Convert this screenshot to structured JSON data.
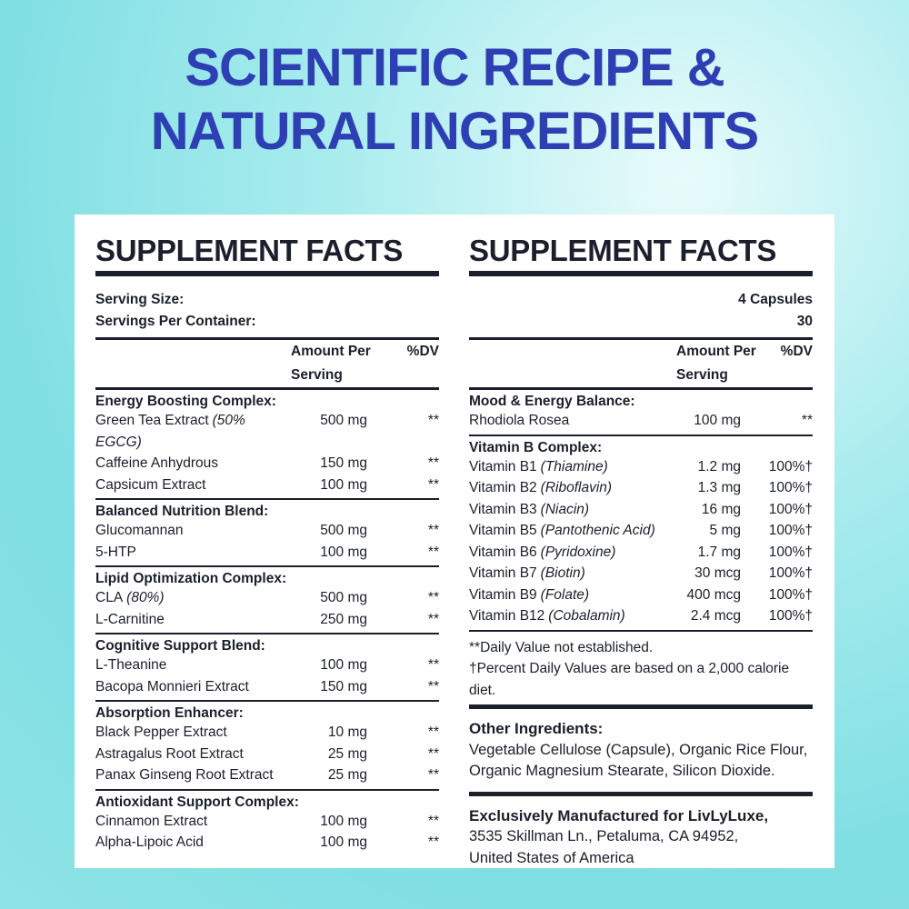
{
  "title": [
    "SCIENTIFIC RECIPE &",
    "NATURAL INGREDIENTS"
  ],
  "left": {
    "heading": "SUPPLEMENT FACTS",
    "serving_size": "Serving Size:",
    "servings": "Servings Per Container:",
    "amount_header": "Amount Per Serving",
    "dv_header": "%DV",
    "groups": [
      {
        "name": "Energy Boosting Complex:",
        "rows": [
          {
            "name": "Green Tea Extract",
            "note": "(50% EGCG)",
            "amount": "500 mg",
            "dv": "**"
          },
          {
            "name": "Caffeine Anhydrous",
            "amount": "150 mg",
            "dv": "**"
          },
          {
            "name": "Capsicum Extract",
            "amount": "100 mg",
            "dv": "**"
          }
        ]
      },
      {
        "name": "Balanced Nutrition Blend:",
        "rows": [
          {
            "name": "Glucomannan",
            "amount": "500 mg",
            "dv": "**"
          },
          {
            "name": "5-HTP",
            "amount": "100 mg",
            "dv": "**"
          }
        ]
      },
      {
        "name": "Lipid Optimization Complex:",
        "rows": [
          {
            "name": "CLA",
            "note": "(80%)",
            "amount": "500 mg",
            "dv": "**"
          },
          {
            "name": "L-Carnitine",
            "amount": "250 mg",
            "dv": "**"
          }
        ]
      },
      {
        "name": "Cognitive Support Blend:",
        "rows": [
          {
            "name": "L-Theanine",
            "amount": "100 mg",
            "dv": "**"
          },
          {
            "name": "Bacopa Monnieri Extract",
            "amount": "150 mg",
            "dv": "**"
          }
        ]
      },
      {
        "name": "Absorption Enhancer:",
        "rows": [
          {
            "name": "Black Pepper Extract",
            "amount": "10 mg",
            "dv": "**"
          },
          {
            "name": "Astragalus Root Extract",
            "amount": "25 mg",
            "dv": "**"
          },
          {
            "name": "Panax Ginseng Root Extract",
            "amount": "25 mg",
            "dv": "**"
          }
        ]
      },
      {
        "name": "Antioxidant Support Complex:",
        "rows": [
          {
            "name": "Cinnamon Extract",
            "amount": "100 mg",
            "dv": "**"
          },
          {
            "name": "Alpha-Lipoic Acid",
            "amount": "100 mg",
            "dv": "**"
          }
        ]
      }
    ]
  },
  "right": {
    "heading": "SUPPLEMENT FACTS",
    "serving_size": "4 Capsules",
    "servings": "30",
    "amount_header": "Amount Per Serving",
    "dv_header": "%DV",
    "groups": [
      {
        "name": "Mood & Energy Balance:",
        "rows": [
          {
            "name": "Rhodiola Rosea",
            "amount": "100 mg",
            "dv": "**"
          }
        ]
      },
      {
        "name": "Vitamin B Complex:",
        "rows": [
          {
            "name": "Vitamin B1",
            "note": "(Thiamine)",
            "amount": "1.2 mg",
            "dv": "100%†"
          },
          {
            "name": "Vitamin B2",
            "note": "(Riboflavin)",
            "amount": "1.3 mg",
            "dv": "100%†"
          },
          {
            "name": "Vitamin B3",
            "note": "(Niacin)",
            "amount": "16 mg",
            "dv": "100%†"
          },
          {
            "name": "Vitamin B5",
            "note": "(Pantothenic Acid)",
            "amount": "5 mg",
            "dv": "100%†"
          },
          {
            "name": "Vitamin B6",
            "note": "(Pyridoxine)",
            "amount": "1.7 mg",
            "dv": "100%†"
          },
          {
            "name": "Vitamin B7",
            "note": "(Biotin)",
            "amount": "30 mcg",
            "dv": "100%†"
          },
          {
            "name": "Vitamin B9",
            "note": "(Folate)",
            "amount": "400 mcg",
            "dv": "100%†"
          },
          {
            "name": "Vitamin B12",
            "note": "(Cobalamin)",
            "amount": "2.4 mcg",
            "dv": "100%†"
          }
        ]
      }
    ],
    "footnotes": [
      "**Daily Value not established.",
      "†Percent Daily Values are based on a 2,000 calorie diet."
    ],
    "other_ingredients": {
      "heading": "Other Ingredients:",
      "lines": [
        "Vegetable Cellulose (Capsule), Organic Rice Flour,",
        "Organic Magnesium Stearate, Silicon Dioxide."
      ]
    },
    "manufacturer": {
      "heading": "Exclusively Manufactured for LivLyLuxe,",
      "lines": [
        "3535 Skillman Ln., Petaluma, CA 94952,",
        "United States of America"
      ]
    }
  }
}
